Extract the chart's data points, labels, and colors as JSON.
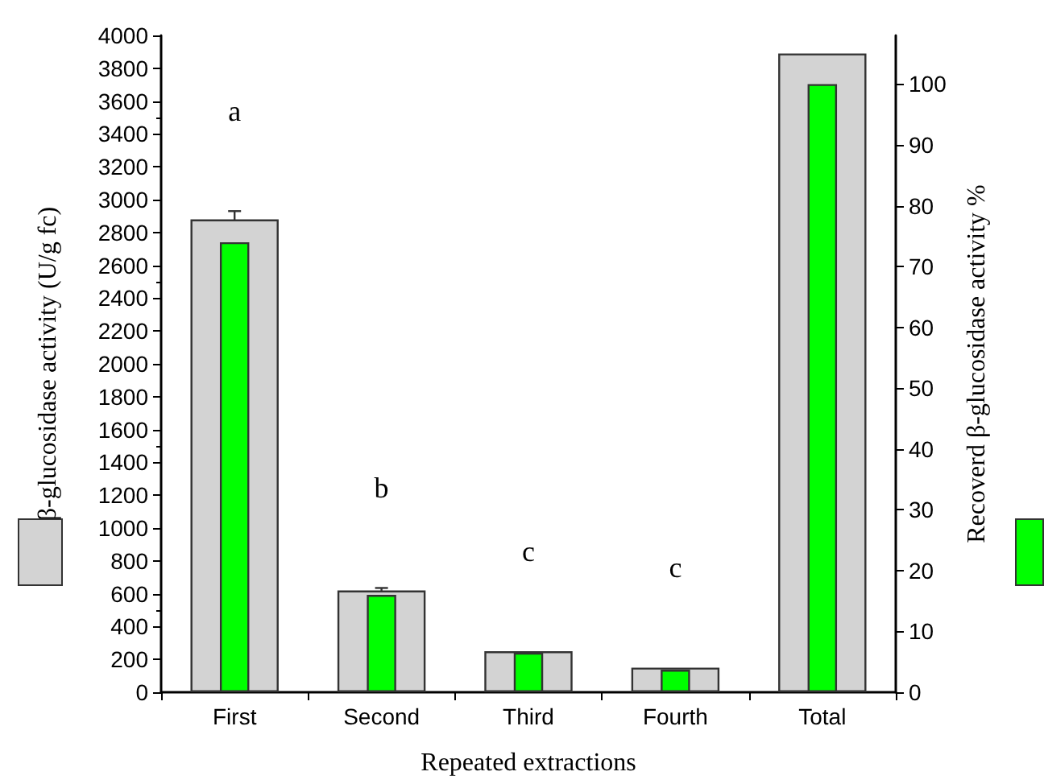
{
  "chart_data": {
    "type": "bar",
    "xlabel": "Repeated extractions",
    "ylabel": "β-glucosidase activity (U/g fc)",
    "y2label": "Recoverd β-glucosidase activity %",
    "categories": [
      "First",
      "Second",
      "Third",
      "Fourth",
      "Total"
    ],
    "series": [
      {
        "color": "#d3d3d3",
        "values": [
          2880,
          620,
          250,
          150,
          3890
        ],
        "errors": [
          50,
          15,
          null,
          null,
          null
        ]
      },
      {
        "color": "#00ff00",
        "axis": "y2",
        "values": [
          74,
          16,
          6.5,
          3.7,
          100
        ]
      }
    ],
    "ylim": [
      0,
      4000
    ],
    "yticks": [
      0,
      200,
      400,
      600,
      800,
      1000,
      1200,
      1400,
      1600,
      1800,
      2000,
      2200,
      2400,
      2600,
      2800,
      3000,
      3200,
      3400,
      3600,
      3800,
      4000
    ],
    "y2lim": [
      0,
      108
    ],
    "y2ticks": [
      0,
      10,
      20,
      30,
      40,
      50,
      60,
      70,
      80,
      90,
      100
    ],
    "annotations": [
      "a",
      "b",
      "c",
      "c"
    ]
  }
}
